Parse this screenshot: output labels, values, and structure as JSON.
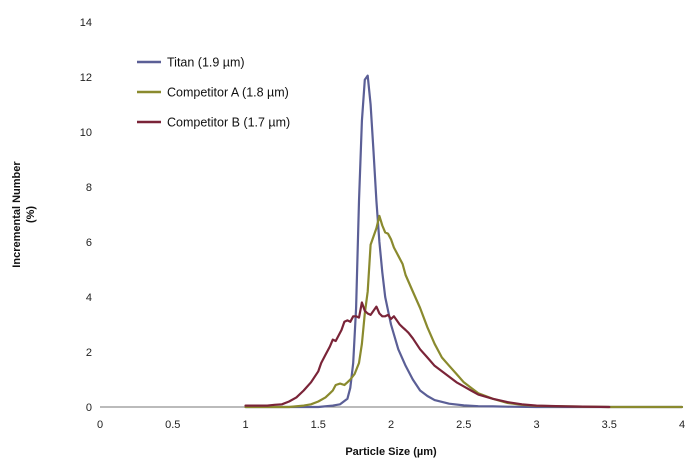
{
  "chart_data": {
    "type": "line",
    "xlabel": "Particle Size (µm)",
    "ylabel": "Incremental  Number",
    "ylabel_unit": "(%)",
    "xlim": [
      0,
      4
    ],
    "ylim": [
      0,
      14
    ],
    "x_ticks": [
      "0",
      "0.5",
      "1",
      "1.5",
      "2",
      "2.5",
      "3",
      "3.5",
      "4"
    ],
    "y_ticks": [
      "0",
      "2",
      "4",
      "6",
      "8",
      "10",
      "12",
      "14"
    ],
    "grid": false,
    "legend_position": "top-left",
    "series": [
      {
        "name": "Titan (1.9 µm)",
        "color": "#5b5f96",
        "x": [
          1.0,
          1.5,
          1.6,
          1.65,
          1.7,
          1.72,
          1.74,
          1.76,
          1.78,
          1.8,
          1.82,
          1.84,
          1.86,
          1.88,
          1.9,
          1.92,
          1.94,
          1.96,
          1.98,
          2.0,
          2.05,
          2.1,
          2.15,
          2.2,
          2.25,
          2.3,
          2.4,
          2.5,
          2.6,
          2.7,
          2.8,
          3.0,
          3.5,
          4.0
        ],
        "y": [
          0.0,
          0.0,
          0.05,
          0.1,
          0.3,
          0.7,
          1.6,
          3.6,
          7.5,
          10.4,
          11.9,
          12.05,
          11.0,
          9.3,
          7.5,
          6.0,
          4.9,
          4.0,
          3.5,
          3.0,
          2.1,
          1.5,
          1.0,
          0.6,
          0.4,
          0.25,
          0.12,
          0.06,
          0.03,
          0.02,
          0.01,
          0.0,
          0.0,
          0.0
        ]
      },
      {
        "name": "Competitor A (1.8 µm)",
        "color": "#8a8a2e",
        "x": [
          1.0,
          1.3,
          1.4,
          1.45,
          1.5,
          1.55,
          1.58,
          1.6,
          1.62,
          1.65,
          1.68,
          1.7,
          1.72,
          1.75,
          1.78,
          1.8,
          1.82,
          1.84,
          1.86,
          1.88,
          1.9,
          1.92,
          1.94,
          1.96,
          1.98,
          2.0,
          2.02,
          2.05,
          2.08,
          2.1,
          2.15,
          2.2,
          2.25,
          2.3,
          2.35,
          2.4,
          2.45,
          2.5,
          2.55,
          2.6,
          2.7,
          2.8,
          2.9,
          3.0,
          3.2,
          3.5,
          4.0
        ],
        "y": [
          0.0,
          0.0,
          0.05,
          0.1,
          0.2,
          0.35,
          0.5,
          0.6,
          0.8,
          0.85,
          0.8,
          0.9,
          1.0,
          1.2,
          1.6,
          2.3,
          3.4,
          4.2,
          5.9,
          6.2,
          6.5,
          6.95,
          6.6,
          6.35,
          6.3,
          6.1,
          5.8,
          5.5,
          5.2,
          4.8,
          4.2,
          3.6,
          2.9,
          2.3,
          1.8,
          1.5,
          1.2,
          0.9,
          0.7,
          0.5,
          0.3,
          0.15,
          0.08,
          0.04,
          0.02,
          0.0,
          0.0
        ]
      },
      {
        "name": "Competitor B (1.7 µm)",
        "color": "#7a2438",
        "x": [
          1.0,
          1.05,
          1.1,
          1.15,
          1.2,
          1.25,
          1.3,
          1.35,
          1.4,
          1.45,
          1.5,
          1.52,
          1.55,
          1.58,
          1.6,
          1.62,
          1.64,
          1.66,
          1.68,
          1.7,
          1.72,
          1.74,
          1.76,
          1.78,
          1.8,
          1.82,
          1.84,
          1.86,
          1.88,
          1.9,
          1.92,
          1.94,
          1.96,
          1.98,
          2.0,
          2.02,
          2.04,
          2.06,
          2.08,
          2.1,
          2.12,
          2.15,
          2.2,
          2.25,
          2.3,
          2.35,
          2.4,
          2.45,
          2.5,
          2.55,
          2.6,
          2.7,
          2.8,
          2.9,
          3.0,
          3.2,
          3.5
        ],
        "y": [
          0.05,
          0.05,
          0.05,
          0.05,
          0.08,
          0.1,
          0.2,
          0.35,
          0.6,
          0.9,
          1.3,
          1.6,
          1.9,
          2.2,
          2.45,
          2.4,
          2.6,
          2.8,
          3.1,
          3.15,
          3.1,
          3.3,
          3.3,
          3.25,
          3.8,
          3.5,
          3.4,
          3.35,
          3.5,
          3.65,
          3.4,
          3.3,
          3.3,
          3.35,
          3.2,
          3.3,
          3.15,
          3.0,
          2.9,
          2.8,
          2.7,
          2.5,
          2.1,
          1.8,
          1.5,
          1.3,
          1.1,
          0.9,
          0.75,
          0.6,
          0.45,
          0.3,
          0.18,
          0.1,
          0.05,
          0.02,
          0.0
        ]
      }
    ]
  }
}
